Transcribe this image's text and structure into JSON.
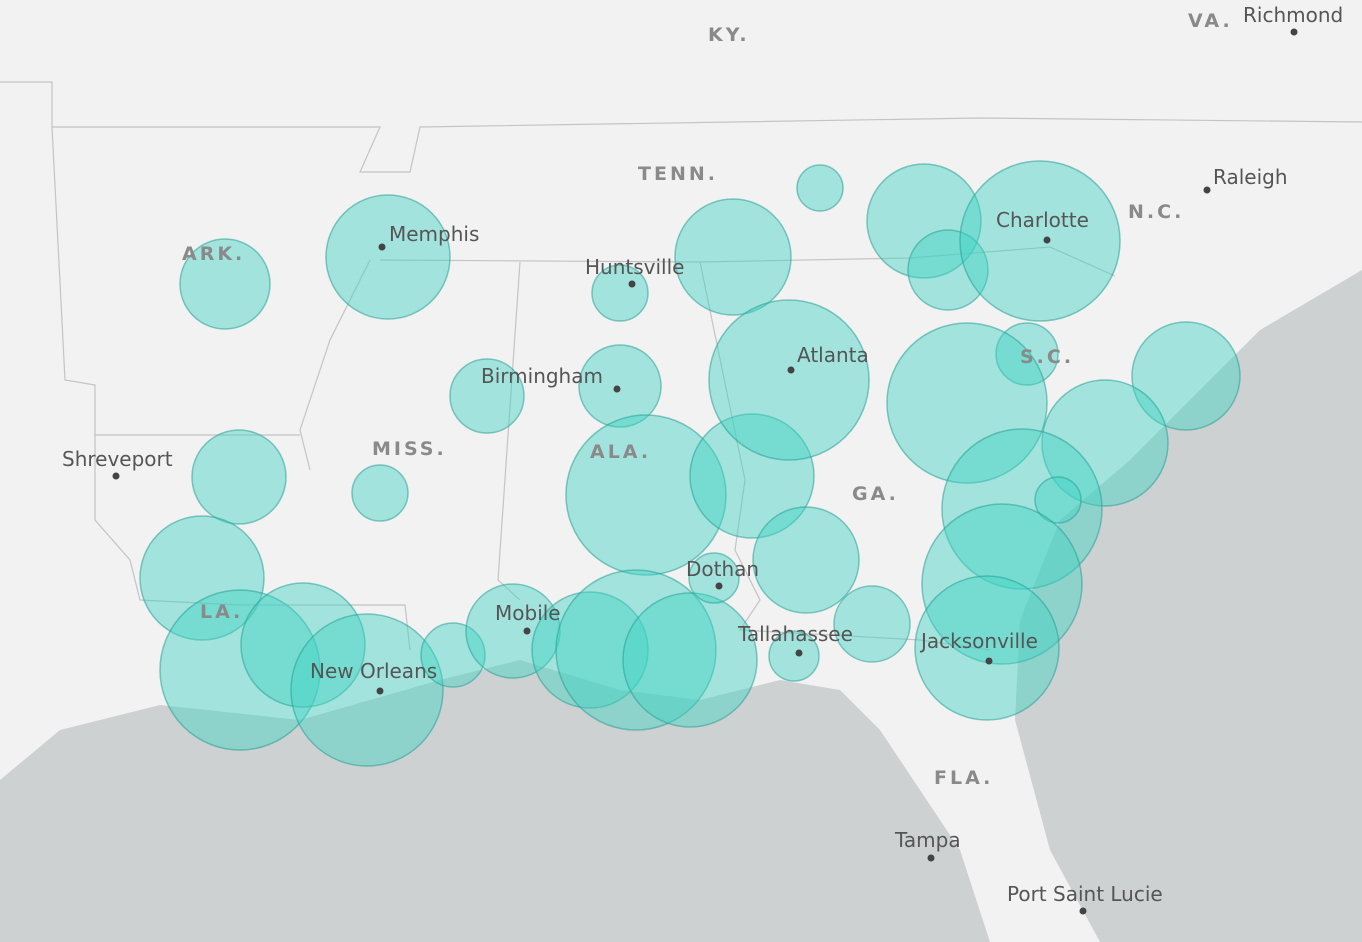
{
  "states": [
    "KY.",
    "VA.",
    "TENN.",
    "N.C.",
    "ARK.",
    "MISS.",
    "ALA.",
    "GA.",
    "S.C.",
    "LA.",
    "FLA."
  ],
  "cities": [
    "Richmond",
    "Raleigh",
    "Charlotte",
    "Memphis",
    "Huntsville",
    "Birmingham",
    "Atlanta",
    "Shreveport",
    "Dothan",
    "Mobile",
    "New Orleans",
    "Tallahassee",
    "Jacksonville",
    "Tampa",
    "Port Saint Lucie"
  ]
}
